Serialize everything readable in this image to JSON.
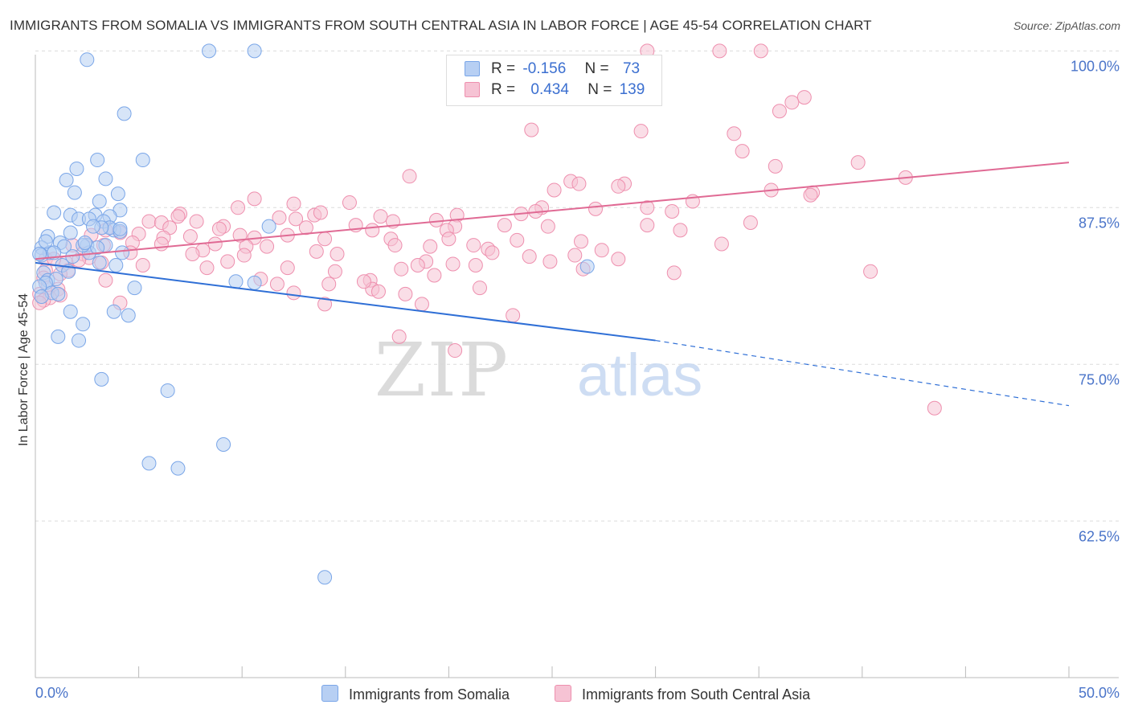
{
  "chart_data": {
    "type": "scatter",
    "title": "IMMIGRANTS FROM SOMALIA VS IMMIGRANTS FROM SOUTH CENTRAL ASIA IN LABOR FORCE | AGE 45-54 CORRELATION CHART",
    "source": "Source: ZipAtlas.com",
    "ylabel": "In Labor Force | Age 45-54",
    "xlabel": "",
    "xlim": [
      0,
      50
    ],
    "ylim": [
      50,
      101.5
    ],
    "x_tick_labels": [
      "0.0%",
      "50.0%"
    ],
    "y_ticks": [
      {
        "value": 100,
        "label": "100.0%"
      },
      {
        "value": 87.5,
        "label": "87.5%"
      },
      {
        "value": 75,
        "label": "75.0%"
      },
      {
        "value": 62.5,
        "label": "62.5%"
      }
    ],
    "watermark": "ZIPatlas",
    "series": [
      {
        "name": "Immigrants from Somalia",
        "R": "-0.156",
        "N": "73",
        "color": "#7aa6e8",
        "fill": "#b7cff3",
        "line_color": "#2f6fd6",
        "trend": {
          "x0": 0,
          "y0": 83.1,
          "x1": 30,
          "y1": 76.9,
          "dash_to_x": 50,
          "dash_to_y": 71.7
        },
        "points": [
          [
            2.5,
            99.3
          ],
          [
            8.4,
            100
          ],
          [
            10.6,
            100
          ],
          [
            4.3,
            95
          ],
          [
            3,
            91.3
          ],
          [
            5.2,
            91.3
          ],
          [
            2,
            90.6
          ],
          [
            1.5,
            89.7
          ],
          [
            3.4,
            89.8
          ],
          [
            1.9,
            88.7
          ],
          [
            4,
            88.6
          ],
          [
            3.1,
            88
          ],
          [
            0.9,
            87.1
          ],
          [
            1.7,
            86.9
          ],
          [
            2.9,
            86.9
          ],
          [
            4.1,
            87.3
          ],
          [
            2.1,
            86.6
          ],
          [
            3.6,
            86.8
          ],
          [
            2.6,
            86.6
          ],
          [
            3.3,
            86.4
          ],
          [
            3.8,
            85.7
          ],
          [
            3.6,
            85.9
          ],
          [
            4.1,
            85.6
          ],
          [
            1.7,
            85.5
          ],
          [
            0.6,
            85.2
          ],
          [
            1.2,
            84.7
          ],
          [
            2.5,
            84.5
          ],
          [
            3.4,
            84.5
          ],
          [
            0.3,
            84.3
          ],
          [
            4.2,
            83.9
          ],
          [
            0.7,
            83.9
          ],
          [
            0.3,
            83.7
          ],
          [
            2.6,
            83.9
          ],
          [
            3.1,
            83.1
          ],
          [
            3.9,
            82.9
          ],
          [
            1.3,
            82.9
          ],
          [
            0.4,
            82.3
          ],
          [
            0.6,
            81.7
          ],
          [
            1,
            81.8
          ],
          [
            0.5,
            81.5
          ],
          [
            0.2,
            81.2
          ],
          [
            4.8,
            81.1
          ],
          [
            0.8,
            80.7
          ],
          [
            1.1,
            80.6
          ],
          [
            0.3,
            80.4
          ],
          [
            1.7,
            79.2
          ],
          [
            3.8,
            79.2
          ],
          [
            4.5,
            78.9
          ],
          [
            2.3,
            78.2
          ],
          [
            1.1,
            77.2
          ],
          [
            2.1,
            76.9
          ],
          [
            3.2,
            73.8
          ],
          [
            6.4,
            72.9
          ],
          [
            9.1,
            68.6
          ],
          [
            5.5,
            67.1
          ],
          [
            6.9,
            66.7
          ],
          [
            14,
            58
          ],
          [
            9.7,
            81.6
          ],
          [
            10.6,
            81.5
          ],
          [
            11.3,
            86
          ],
          [
            26.7,
            82.8
          ],
          [
            1.4,
            84.4
          ],
          [
            2.3,
            84.5
          ],
          [
            1.8,
            83.6
          ],
          [
            0.9,
            83.9
          ],
          [
            3,
            84.3
          ],
          [
            2.4,
            84.7
          ],
          [
            1.6,
            82.4
          ],
          [
            0.5,
            84.8
          ],
          [
            4.1,
            85.8
          ],
          [
            3.2,
            85.9
          ],
          [
            2.8,
            86
          ],
          [
            0.2,
            83.8
          ]
        ]
      },
      {
        "name": "Immigrants from South Central Asia",
        "R": "0.434",
        "N": "139",
        "color": "#ee8fae",
        "fill": "#f6c3d4",
        "line_color": "#e06a94",
        "trend": {
          "x0": 0,
          "y0": 83.4,
          "x1": 50,
          "y1": 91.1
        },
        "points": [
          [
            29.6,
            100
          ],
          [
            33.1,
            100
          ],
          [
            35.1,
            100
          ],
          [
            37.2,
            96.3
          ],
          [
            36.6,
            95.9
          ],
          [
            36,
            95.2
          ],
          [
            24,
            93.7
          ],
          [
            29.3,
            93.6
          ],
          [
            33.8,
            93.4
          ],
          [
            34.2,
            92
          ],
          [
            39.8,
            91.1
          ],
          [
            35.8,
            90.8
          ],
          [
            18.1,
            90
          ],
          [
            42.1,
            89.9
          ],
          [
            28.5,
            89.4
          ],
          [
            25.9,
            89.6
          ],
          [
            26.3,
            89.4
          ],
          [
            28.2,
            89.2
          ],
          [
            25.1,
            88.9
          ],
          [
            35.6,
            88.9
          ],
          [
            37.6,
            88.7
          ],
          [
            37.5,
            88.5
          ],
          [
            10.6,
            88.2
          ],
          [
            31.8,
            88
          ],
          [
            15.2,
            87.9
          ],
          [
            12.5,
            87.8
          ],
          [
            9.8,
            87.5
          ],
          [
            29.6,
            87.5
          ],
          [
            24.5,
            87.5
          ],
          [
            27.1,
            87.4
          ],
          [
            24.2,
            87.2
          ],
          [
            23.5,
            87
          ],
          [
            30.8,
            87.2
          ],
          [
            7,
            87
          ],
          [
            13.5,
            86.9
          ],
          [
            20.4,
            86.9
          ],
          [
            6.9,
            86.8
          ],
          [
            16.7,
            86.8
          ],
          [
            11.8,
            86.7
          ],
          [
            19.4,
            86.5
          ],
          [
            12.6,
            86.6
          ],
          [
            17.3,
            86.4
          ],
          [
            5.5,
            86.4
          ],
          [
            6.1,
            86.3
          ],
          [
            22.7,
            86.1
          ],
          [
            20.3,
            86
          ],
          [
            9.1,
            86
          ],
          [
            15.5,
            86.1
          ],
          [
            24.8,
            86
          ],
          [
            29.6,
            86.1
          ],
          [
            6.5,
            85.9
          ],
          [
            8.9,
            85.8
          ],
          [
            3.4,
            85.7
          ],
          [
            19.9,
            85.7
          ],
          [
            16.3,
            85.7
          ],
          [
            13.1,
            85.9
          ],
          [
            4.1,
            85.5
          ],
          [
            5,
            85.4
          ],
          [
            12.2,
            85.3
          ],
          [
            2.7,
            85.3
          ],
          [
            7.5,
            85.2
          ],
          [
            6.2,
            85.1
          ],
          [
            17.2,
            85
          ],
          [
            14,
            85
          ],
          [
            10.6,
            85.1
          ],
          [
            20,
            85
          ],
          [
            23.3,
            84.9
          ],
          [
            26.4,
            84.8
          ],
          [
            4.7,
            84.7
          ],
          [
            6.1,
            84.6
          ],
          [
            8.7,
            84.6
          ],
          [
            17.4,
            84.5
          ],
          [
            19.1,
            84.4
          ],
          [
            21.2,
            84.5
          ],
          [
            10.2,
            84.4
          ],
          [
            1.8,
            84.5
          ],
          [
            3.3,
            84.5
          ],
          [
            8.1,
            84.1
          ],
          [
            21.9,
            84.2
          ],
          [
            13.6,
            84
          ],
          [
            4.6,
            83.9
          ],
          [
            7.6,
            83.8
          ],
          [
            2.3,
            83.8
          ],
          [
            10.1,
            83.7
          ],
          [
            14.6,
            83.8
          ],
          [
            26.1,
            83.7
          ],
          [
            28.2,
            83.4
          ],
          [
            23.9,
            83.6
          ],
          [
            18.9,
            83.2
          ],
          [
            1.5,
            83.1
          ],
          [
            3.2,
            83.1
          ],
          [
            2.6,
            83.5
          ],
          [
            0.5,
            83.4
          ],
          [
            0.9,
            83.4
          ],
          [
            2.1,
            83.3
          ],
          [
            18.5,
            82.9
          ],
          [
            20.2,
            83
          ],
          [
            21.3,
            82.9
          ],
          [
            24.9,
            83.2
          ],
          [
            8.3,
            82.7
          ],
          [
            12.2,
            82.7
          ],
          [
            1.6,
            82.5
          ],
          [
            0.5,
            82.5
          ],
          [
            17.7,
            82.6
          ],
          [
            14.5,
            82.4
          ],
          [
            30.9,
            82.3
          ],
          [
            40.4,
            82.4
          ],
          [
            1.2,
            82.2
          ],
          [
            0.4,
            81.9
          ],
          [
            10.9,
            81.8
          ],
          [
            16.2,
            81.7
          ],
          [
            3.4,
            81.7
          ],
          [
            14.2,
            81.4
          ],
          [
            11.7,
            81.4
          ],
          [
            0.6,
            81.1
          ],
          [
            1.1,
            81
          ],
          [
            16.3,
            81
          ],
          [
            0.2,
            80.6
          ],
          [
            16.6,
            80.8
          ],
          [
            12.5,
            80.7
          ],
          [
            17.9,
            80.6
          ],
          [
            1.2,
            80.5
          ],
          [
            0.7,
            80.3
          ],
          [
            0.4,
            80.1
          ],
          [
            0.2,
            79.9
          ],
          [
            14,
            79.8
          ],
          [
            4.1,
            79.9
          ],
          [
            18.7,
            79.8
          ],
          [
            23.1,
            78.9
          ],
          [
            17.6,
            77.2
          ],
          [
            20.3,
            76.1
          ],
          [
            43.5,
            71.5
          ],
          [
            21.5,
            81.1
          ],
          [
            9.9,
            85.3
          ],
          [
            15.9,
            81.6
          ],
          [
            11.2,
            84.4
          ],
          [
            27.4,
            84.1
          ],
          [
            26.5,
            82.6
          ],
          [
            31.2,
            85.7
          ],
          [
            33.2,
            84.6
          ],
          [
            7.8,
            86.4
          ],
          [
            13.8,
            87.1
          ],
          [
            22.1,
            83.9
          ],
          [
            5.2,
            82.9
          ],
          [
            19.3,
            82.1
          ],
          [
            9.3,
            83.2
          ],
          [
            34.6,
            86.3
          ]
        ]
      }
    ]
  },
  "legend": {
    "r_label": "R =",
    "n_label": "N ="
  }
}
